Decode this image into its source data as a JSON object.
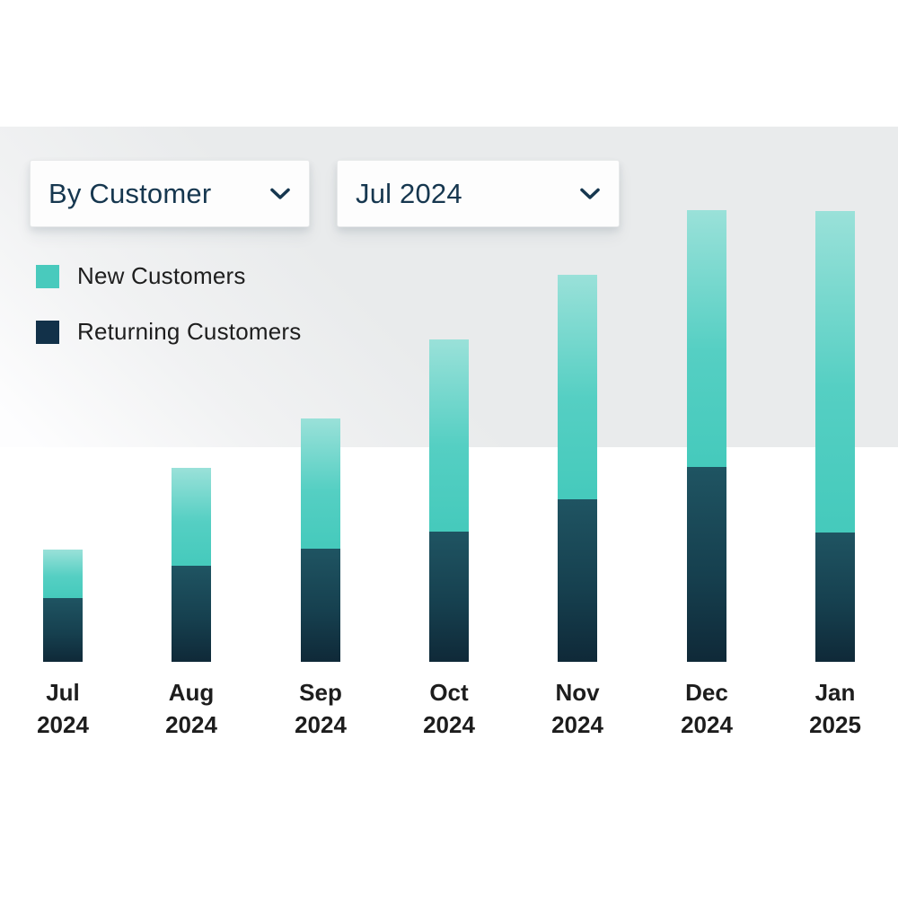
{
  "filters": {
    "group_by": {
      "value": "By Customer"
    },
    "period": {
      "value": "Jul 2024"
    }
  },
  "legend": {
    "items": [
      {
        "key": "new",
        "label": "New Customers",
        "color": "#49cabd"
      },
      {
        "key": "returning",
        "label": "Returning Customers",
        "color": "#123149"
      }
    ]
  },
  "chart_data": {
    "type": "bar",
    "stacked": true,
    "title": "",
    "xlabel": "",
    "ylabel": "",
    "categories": [
      "Jul 2024",
      "Aug 2024",
      "Sep 2024",
      "Oct 2024",
      "Nov 2024",
      "Dec 2024",
      "Jan 2025"
    ],
    "series": [
      {
        "name": "New Customers",
        "stack_position": "top",
        "color_stops": [
          "#9ae1d9",
          "#55cfc3",
          "#45cabc"
        ],
        "values": [
          54,
          109,
          145,
          214,
          250,
          286,
          358
        ]
      },
      {
        "name": "Returning Customers",
        "stack_position": "bottom",
        "color_stops": [
          "#1f5462",
          "#16404f",
          "#0f2938"
        ],
        "values": [
          71,
          107,
          126,
          145,
          181,
          217,
          144
        ]
      }
    ],
    "totals": [
      125,
      216,
      271,
      359,
      431,
      503,
      502
    ],
    "value_units": "relative (no y-axis shown)",
    "axes": {
      "y_axis_visible": false,
      "x_axis_line_visible": false,
      "gridlines": false,
      "x_labels_two_lines": true
    },
    "legend_position": "top-left"
  },
  "colors": {
    "white": "#ffffff",
    "panel_gray": "#e9ebec",
    "dropdown_text": "#16374f",
    "label_text": "#1d1d1d",
    "teal": "#49cabd",
    "teal_light": "#9ae1d9",
    "navy": "#123149"
  }
}
